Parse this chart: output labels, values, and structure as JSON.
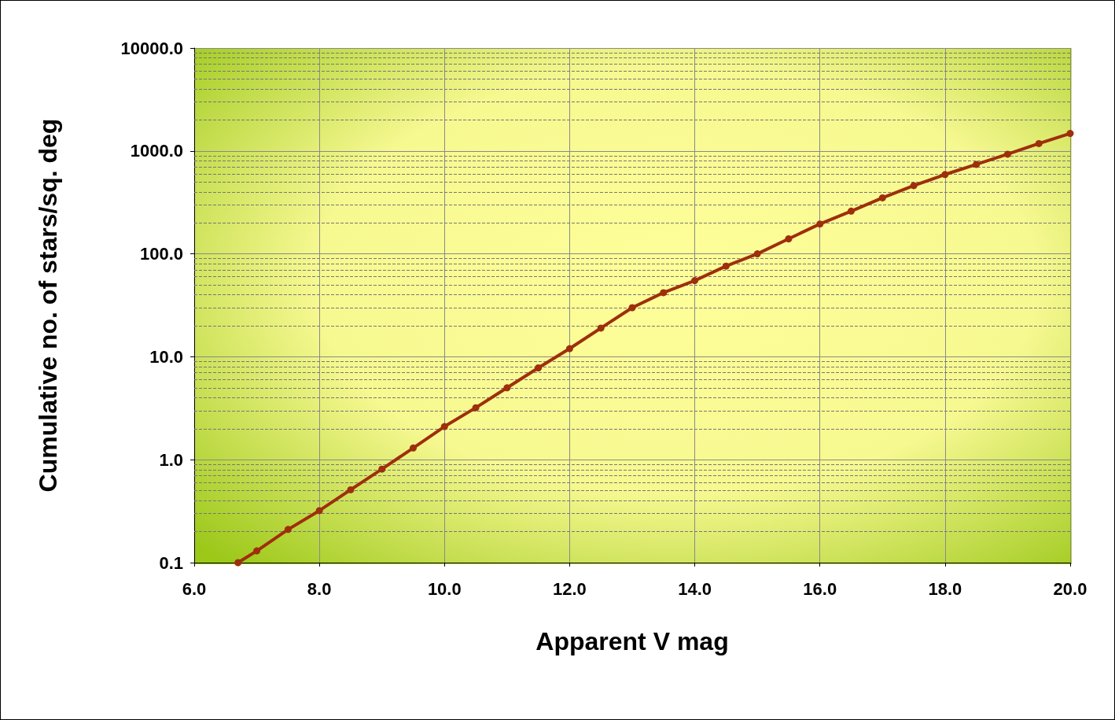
{
  "chart_data": {
    "type": "line",
    "xlabel": "Apparent V mag",
    "ylabel": "Cumulative no. of stars/sq. deg",
    "log": "y",
    "grid": true,
    "marker": "circle",
    "line_style": "solid",
    "xlim": [
      6,
      20
    ],
    "xticks": [
      {
        "value": 6,
        "label": "6.0"
      },
      {
        "value": 8,
        "label": "8.0"
      },
      {
        "value": 10,
        "label": "10.0"
      },
      {
        "value": 12,
        "label": "12.0"
      },
      {
        "value": 14,
        "label": "14.0"
      },
      {
        "value": 16,
        "label": "16.0"
      },
      {
        "value": 18,
        "label": "18.0"
      },
      {
        "value": 20,
        "label": "20.0"
      }
    ],
    "ylim": [
      0.1,
      10000
    ],
    "yticks": [
      {
        "value": 0.1,
        "label": "0.1"
      },
      {
        "value": 0.2,
        "label": null
      },
      {
        "value": 0.3,
        "label": null
      },
      {
        "value": 0.4,
        "label": null
      },
      {
        "value": 0.5,
        "label": null
      },
      {
        "value": 0.6,
        "label": null
      },
      {
        "value": 0.7,
        "label": null
      },
      {
        "value": 0.8,
        "label": null
      },
      {
        "value": 0.9,
        "label": null
      },
      {
        "value": 1,
        "label": "1.0"
      },
      {
        "value": 2,
        "label": null
      },
      {
        "value": 3,
        "label": null
      },
      {
        "value": 4,
        "label": null
      },
      {
        "value": 5,
        "label": null
      },
      {
        "value": 6,
        "label": null
      },
      {
        "value": 7,
        "label": null
      },
      {
        "value": 8,
        "label": null
      },
      {
        "value": 9,
        "label": null
      },
      {
        "value": 10,
        "label": "10.0"
      },
      {
        "value": 20,
        "label": null
      },
      {
        "value": 30,
        "label": null
      },
      {
        "value": 40,
        "label": null
      },
      {
        "value": 50,
        "label": null
      },
      {
        "value": 60,
        "label": null
      },
      {
        "value": 70,
        "label": null
      },
      {
        "value": 80,
        "label": null
      },
      {
        "value": 90,
        "label": null
      },
      {
        "value": 100,
        "label": "100.0"
      },
      {
        "value": 200,
        "label": null
      },
      {
        "value": 300,
        "label": null
      },
      {
        "value": 400,
        "label": null
      },
      {
        "value": 500,
        "label": null
      },
      {
        "value": 600,
        "label": null
      },
      {
        "value": 700,
        "label": null
      },
      {
        "value": 800,
        "label": null
      },
      {
        "value": 900,
        "label": null
      },
      {
        "value": 1000,
        "label": "1000.0"
      },
      {
        "value": 2000,
        "label": null
      },
      {
        "value": 3000,
        "label": null
      },
      {
        "value": 4000,
        "label": null
      },
      {
        "value": 5000,
        "label": null
      },
      {
        "value": 6000,
        "label": null
      },
      {
        "value": 7000,
        "label": null
      },
      {
        "value": 8000,
        "label": null
      },
      {
        "value": 9000,
        "label": null
      },
      {
        "value": 10000,
        "label": "10000.0"
      }
    ],
    "series": [
      {
        "color": "#9e2f0c",
        "x": [
          6.7,
          7,
          7.5,
          8,
          8.5,
          9,
          9.5,
          10,
          10.5,
          11,
          11.5,
          12,
          12.5,
          13,
          13.5,
          14,
          14.5,
          15,
          15.5,
          16,
          16.5,
          17,
          17.5,
          18,
          18.5,
          19,
          19.5,
          20
        ],
        "values": [
          0.1,
          0.13,
          0.21,
          0.32,
          0.51,
          0.81,
          1.3,
          2.1,
          3.2,
          5,
          7.8,
          12,
          19,
          30,
          42,
          55,
          76,
          100,
          140,
          195,
          260,
          350,
          460,
          590,
          740,
          930,
          1180,
          1480
        ]
      }
    ]
  }
}
